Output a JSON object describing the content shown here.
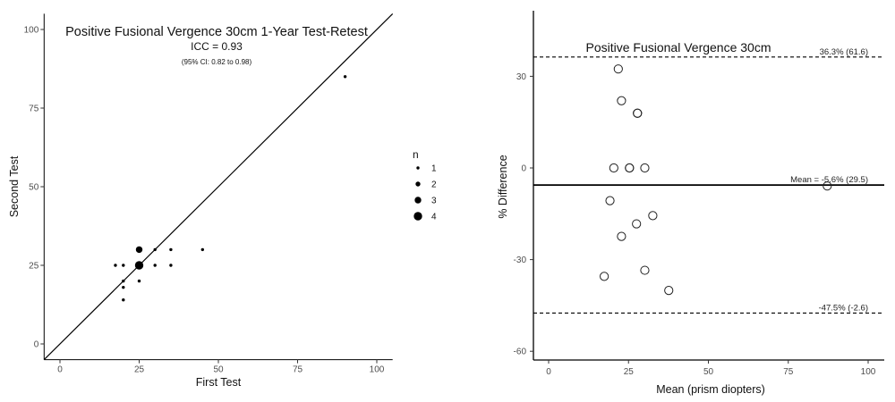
{
  "chart_data": [
    {
      "type": "scatter",
      "title": "Positive Fusional Vergence 30cm 1-Year Test-Retest",
      "subtitle": "ICC = 0.93",
      "annotation": "(95% CI: 0.82 to 0.98)",
      "xlabel": "First Test",
      "ylabel": "Second Test",
      "xlim": [
        -5,
        105
      ],
      "ylim": [
        -5,
        105
      ],
      "xticks": [
        0,
        25,
        50,
        75,
        100
      ],
      "yticks": [
        0,
        25,
        50,
        75,
        100
      ],
      "identity_line": true,
      "grid": false,
      "legend": {
        "title": "n",
        "placement": "right",
        "entries": [
          1,
          2,
          3,
          4
        ]
      },
      "points": [
        {
          "x": 90,
          "y": 85,
          "n": 1
        },
        {
          "x": 45,
          "y": 30,
          "n": 1
        },
        {
          "x": 35,
          "y": 30,
          "n": 1
        },
        {
          "x": 30,
          "y": 30,
          "n": 1
        },
        {
          "x": 25,
          "y": 30,
          "n": 3
        },
        {
          "x": 35,
          "y": 25,
          "n": 1
        },
        {
          "x": 30,
          "y": 25,
          "n": 1
        },
        {
          "x": 25,
          "y": 25,
          "n": 4
        },
        {
          "x": 20,
          "y": 25,
          "n": 1
        },
        {
          "x": 17.5,
          "y": 25,
          "n": 1
        },
        {
          "x": 25,
          "y": 20,
          "n": 1
        },
        {
          "x": 20,
          "y": 20,
          "n": 1
        },
        {
          "x": 20,
          "y": 18,
          "n": 1
        },
        {
          "x": 20,
          "y": 14,
          "n": 1
        }
      ]
    },
    {
      "type": "scatter",
      "title": "Positive Fusional Vergence 30cm",
      "xlabel": "Mean (prism diopters)",
      "ylabel": "% Difference",
      "xlim": [
        -5,
        105
      ],
      "ylim": [
        -65,
        52
      ],
      "xticks": [
        0,
        25,
        50,
        75,
        100
      ],
      "yticks": [
        -60,
        -30,
        0,
        30
      ],
      "grid": false,
      "reference_lines": [
        {
          "y": 36.3,
          "style": "dashed",
          "label": "36.3% (61.6)"
        },
        {
          "y": -5.6,
          "style": "solid",
          "label": "Mean = -5.6% (29.5)"
        },
        {
          "y": -47.5,
          "style": "dashed",
          "label": "-47.5% (-2.6)"
        }
      ],
      "points": [
        {
          "x": 21.8,
          "y": 32.4
        },
        {
          "x": 22.8,
          "y": 22.0
        },
        {
          "x": 27.8,
          "y": 17.9
        },
        {
          "x": 27.8,
          "y": 17.9
        },
        {
          "x": 20.4,
          "y": 0
        },
        {
          "x": 25.3,
          "y": 0
        },
        {
          "x": 25.3,
          "y": 0
        },
        {
          "x": 30.1,
          "y": 0
        },
        {
          "x": 87.2,
          "y": -5.9
        },
        {
          "x": 19.2,
          "y": -10.7
        },
        {
          "x": 32.6,
          "y": -15.6
        },
        {
          "x": 27.5,
          "y": -18.3
        },
        {
          "x": 22.8,
          "y": -22.4
        },
        {
          "x": 17.4,
          "y": -35.5
        },
        {
          "x": 30.1,
          "y": -33.5
        },
        {
          "x": 37.6,
          "y": -40.1
        }
      ]
    }
  ]
}
